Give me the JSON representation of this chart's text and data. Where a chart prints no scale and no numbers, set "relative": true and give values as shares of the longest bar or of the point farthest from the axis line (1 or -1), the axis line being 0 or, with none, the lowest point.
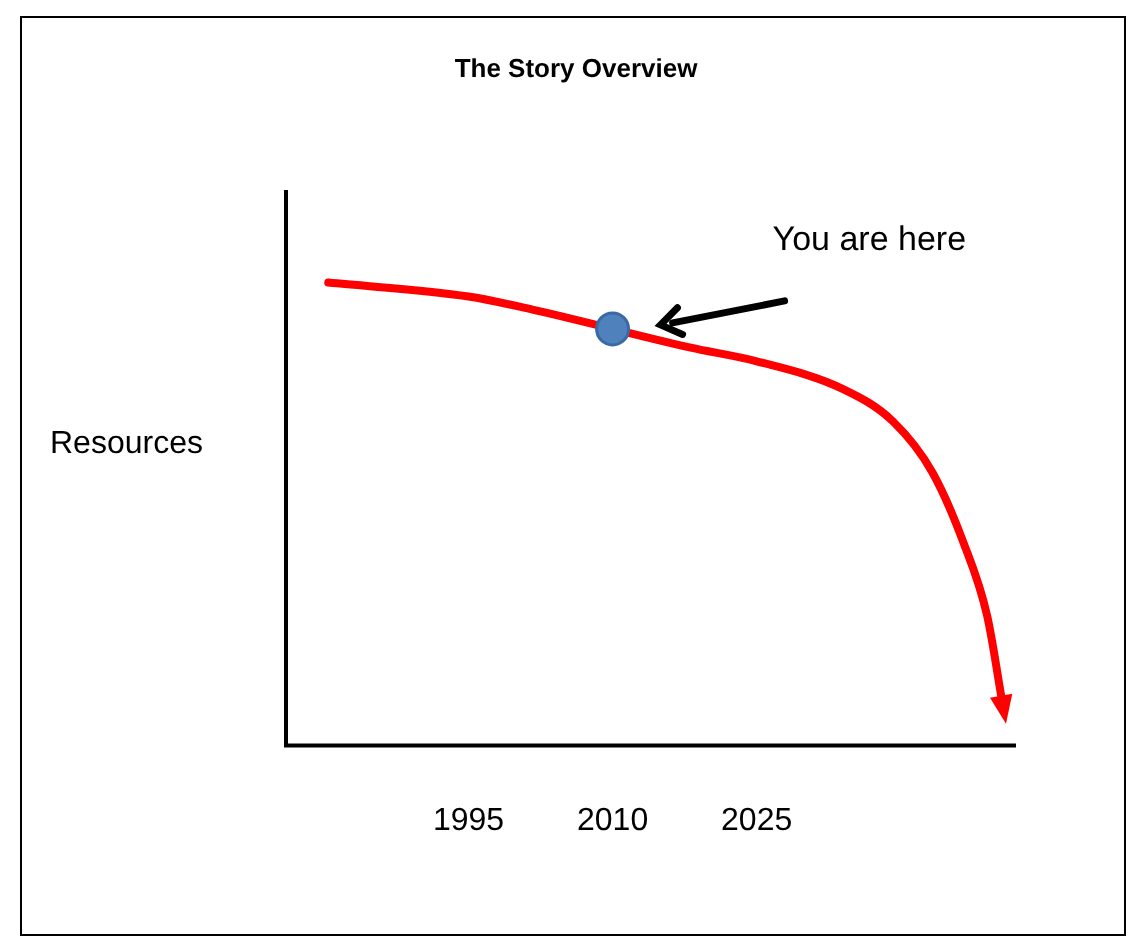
{
  "chart_data": {
    "type": "line",
    "title": "The Story Overview",
    "ylabel": "Resources",
    "relative": true,
    "xlim": [
      1976,
      2052
    ],
    "xticks": [
      1995,
      2010,
      2025
    ],
    "series": [
      {
        "color": "#ff0000",
        "x": [
          1980.4,
          1995,
          2002,
          2018,
          2025,
          2034,
          2039.2,
          2043.3,
          2046.5,
          2049,
          2050.6
        ],
        "values": [
          1,
          0.97,
          0.94,
          0.86,
          0.83,
          0.77,
          0.7,
          0.59,
          0.44,
          0.28,
          0.09
        ]
      },
      {
        "type": "scatter",
        "marker": "circle",
        "color": "#4f81bd",
        "x": [
          2010
        ],
        "values": [
          0.9
        ]
      }
    ],
    "annotations": [
      "You are here"
    ]
  }
}
